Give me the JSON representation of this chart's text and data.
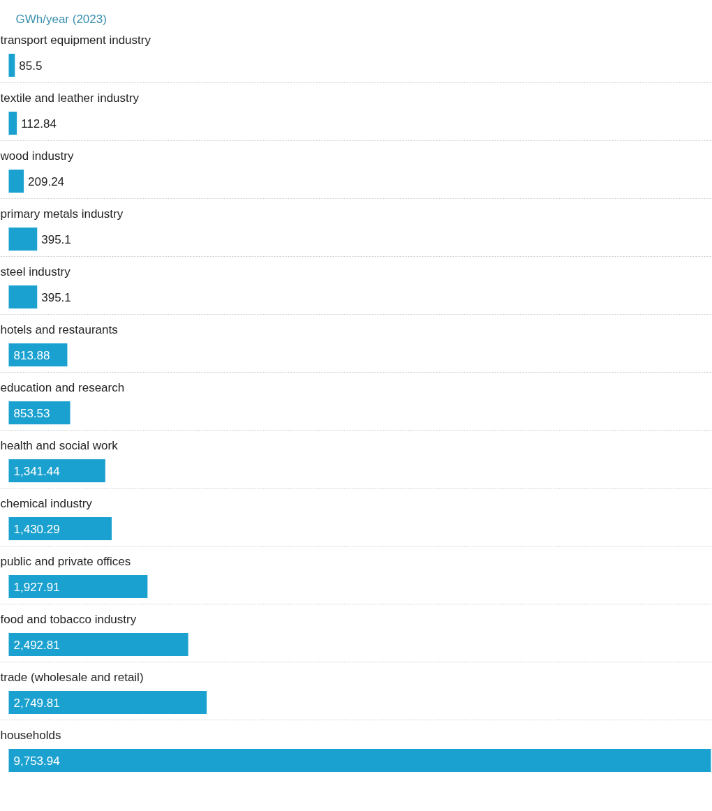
{
  "chart_data": {
    "type": "bar",
    "orientation": "horizontal",
    "title": "GWh/year (2023)",
    "categories": [
      "transport equipment industry",
      "textile and leather industry",
      "wood industry",
      "primary metals industry",
      "steel industry",
      "hotels and restaurants",
      "education and research",
      "health and social work",
      "chemical industry",
      "public and private offices",
      "food and tobacco industry",
      "trade (wholesale and retail)",
      "households"
    ],
    "values": [
      85.5,
      112.84,
      209.24,
      395.1,
      395.1,
      813.88,
      853.53,
      1341.44,
      1430.29,
      1927.91,
      2492.81,
      2749.81,
      9753.94
    ],
    "value_labels": [
      "85.5",
      "112.84",
      "209.24",
      "395.1",
      "395.1",
      "813.88",
      "853.53",
      "1,341.44",
      "1,430.29",
      "1,927.91",
      "2,492.81",
      "2,749.81",
      "9,753.94"
    ],
    "color": "#1ba1cf"
  }
}
